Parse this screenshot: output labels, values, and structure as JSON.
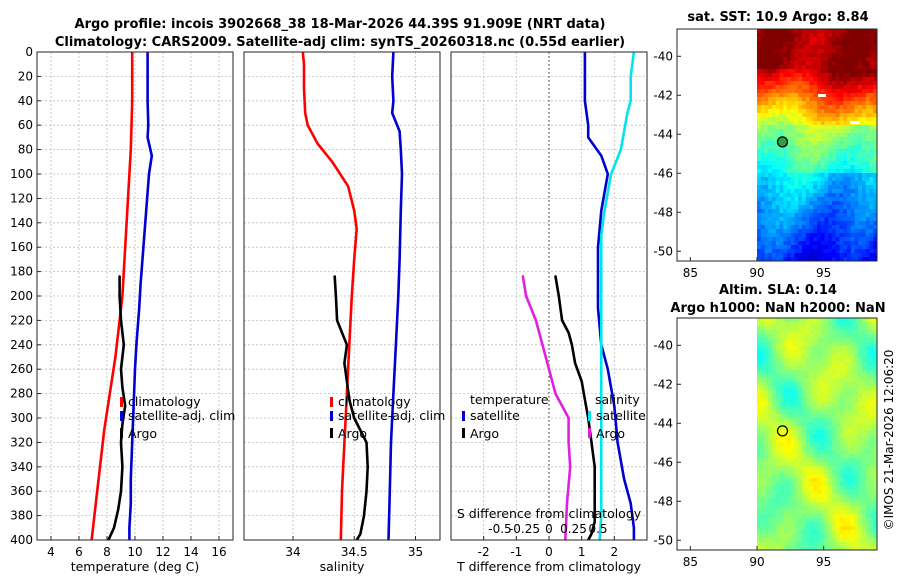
{
  "header": {
    "title_line1": "Argo profile: incois 3902668_38 18-Mar-2026 44.39S 91.909E (NRT data)",
    "title_line2": "Climatology: CARS2009. Satellite-adj clim: synTS_20260318.nc (0.55d earlier)"
  },
  "colors": {
    "climatology": "#ff0000",
    "satellite": "#0000d0",
    "argo": "#000000",
    "salinity_satellite": "#00e5ee",
    "salinity_argo": "#e020e0"
  },
  "chart_data": [
    {
      "type": "line",
      "id": "temperature",
      "xlabel": "temperature (deg C)",
      "ylabel": "",
      "xlim": [
        3,
        17
      ],
      "ylim": [
        400,
        0
      ],
      "xticks": [
        "4",
        "6",
        "8",
        "10",
        "12",
        "14",
        "16"
      ],
      "xtick_values": [
        4,
        6,
        8,
        10,
        12,
        14,
        16
      ],
      "yticks": [
        "0",
        "20",
        "40",
        "60",
        "80",
        "100",
        "120",
        "140",
        "160",
        "180",
        "200",
        "220",
        "240",
        "260",
        "280",
        "300",
        "320",
        "340",
        "360",
        "380",
        "400"
      ],
      "ytick_values": [
        0,
        20,
        40,
        60,
        80,
        100,
        120,
        140,
        160,
        180,
        200,
        220,
        240,
        260,
        280,
        300,
        320,
        340,
        360,
        380,
        400
      ],
      "grid": true,
      "legend": [
        "climatology",
        "satellite-adj. clim",
        "Argo"
      ],
      "series": [
        {
          "name": "climatology",
          "color": "#ff0000",
          "x": [
            9.8,
            9.8,
            9.7,
            9.6,
            9.5,
            9.4,
            9.3,
            9.2,
            9.1,
            8.9,
            8.6,
            8.2,
            7.8,
            7.5,
            7.2,
            6.9
          ],
          "y": [
            0,
            40,
            80,
            100,
            120,
            140,
            160,
            180,
            200,
            220,
            250,
            280,
            310,
            340,
            370,
            400
          ]
        },
        {
          "name": "satellite-adj. clim",
          "color": "#0000d0",
          "x": [
            10.9,
            10.9,
            10.95,
            10.9,
            11.2,
            11.0,
            10.8,
            10.6,
            10.4,
            10.3,
            10.1,
            10.0,
            9.9,
            9.8,
            9.7,
            9.7,
            9.6,
            9.6
          ],
          "y": [
            0,
            40,
            60,
            70,
            85,
            100,
            130,
            160,
            190,
            210,
            240,
            260,
            290,
            320,
            350,
            370,
            390,
            400
          ]
        },
        {
          "name": "Argo",
          "color": "#000000",
          "x": [
            8.9,
            8.9,
            9.0,
            9.2,
            9.0,
            9.1,
            9.3,
            9.1,
            9.0,
            9.1,
            9.0,
            8.8,
            8.5,
            8.1
          ],
          "y": [
            184,
            200,
            220,
            240,
            260,
            275,
            290,
            305,
            320,
            340,
            360,
            375,
            390,
            400
          ]
        }
      ]
    },
    {
      "type": "line",
      "id": "salinity",
      "xlabel": "salinity",
      "xlim": [
        33.6,
        35.2
      ],
      "ylim": [
        400,
        0
      ],
      "xticks": [
        "34",
        "34.5",
        "35"
      ],
      "xtick_values": [
        34,
        34.5,
        35
      ],
      "grid": true,
      "legend": [
        "climatology",
        "satellite-adj. clim",
        "Argo"
      ],
      "series": [
        {
          "name": "climatology",
          "color": "#ff0000",
          "x": [
            34.08,
            34.09,
            34.09,
            34.1,
            34.12,
            34.2,
            34.32,
            34.45,
            34.5,
            34.52,
            34.5,
            34.48,
            34.46,
            34.44,
            34.42,
            34.4,
            34.39
          ],
          "y": [
            0,
            10,
            30,
            50,
            60,
            75,
            90,
            110,
            130,
            145,
            170,
            200,
            240,
            280,
            320,
            360,
            400
          ]
        },
        {
          "name": "satellite-adj. clim",
          "color": "#0000d0",
          "x": [
            34.82,
            34.81,
            34.82,
            34.81,
            34.87,
            34.88,
            34.89,
            34.88,
            34.87,
            34.86,
            34.84,
            34.82,
            34.8,
            34.79,
            34.78
          ],
          "y": [
            0,
            20,
            40,
            50,
            65,
            80,
            100,
            130,
            170,
            200,
            240,
            280,
            320,
            360,
            400
          ]
        },
        {
          "name": "Argo",
          "color": "#000000",
          "x": [
            34.34,
            34.35,
            34.36,
            34.4,
            34.44,
            34.42,
            34.44,
            34.46,
            34.5,
            34.6,
            34.61,
            34.6,
            34.58,
            34.55,
            34.52
          ],
          "y": [
            184,
            200,
            220,
            230,
            240,
            255,
            270,
            285,
            300,
            320,
            340,
            360,
            380,
            395,
            400
          ]
        }
      ]
    },
    {
      "type": "line",
      "id": "difference",
      "xlabel": "T difference from climatology",
      "xlim": [
        -3,
        3
      ],
      "ylim": [
        400,
        0
      ],
      "xticks": [
        "-2",
        "-1",
        "0",
        "1",
        "2"
      ],
      "xtick_values": [
        -2,
        -1,
        0,
        1,
        2
      ],
      "top_label": "S difference from climatology",
      "top_ticks": [
        "-0.5",
        "-0.25",
        "0",
        "0.25",
        "0.5"
      ],
      "top_tick_values": [
        -0.5,
        -0.25,
        0,
        0.25,
        0.5
      ],
      "grid": true,
      "legend_headers": [
        "temperature",
        "salinity"
      ],
      "legend": [
        "satellite",
        "Argo",
        "satellite",
        "Argo"
      ],
      "series": [
        {
          "name": "temperature satellite",
          "color": "#0000d0",
          "x": [
            1.1,
            1.1,
            1.2,
            1.2,
            1.6,
            1.8,
            1.6,
            1.5,
            1.5,
            1.5,
            1.6,
            1.8,
            2.0,
            2.1,
            2.3,
            2.5,
            2.6,
            2.6
          ],
          "y": [
            0,
            40,
            60,
            70,
            85,
            100,
            130,
            160,
            190,
            210,
            240,
            260,
            290,
            320,
            350,
            370,
            390,
            400
          ]
        },
        {
          "name": "temperature Argo",
          "color": "#000000",
          "x": [
            0.2,
            0.3,
            0.4,
            0.6,
            0.7,
            0.8,
            1.0,
            1.1,
            1.2,
            1.3,
            1.4,
            1.4,
            1.4,
            1.4,
            1.3,
            1.2
          ],
          "y": [
            184,
            200,
            220,
            230,
            240,
            255,
            270,
            285,
            300,
            320,
            340,
            360,
            375,
            385,
            395,
            400
          ]
        },
        {
          "name": "salinity satellite",
          "color": "#00e5ee",
          "x": [
            2.6,
            2.5,
            2.5,
            2.4,
            2.3,
            2.2,
            1.9,
            1.7,
            1.6,
            1.6,
            1.6,
            1.6,
            1.6,
            1.6,
            1.55
          ],
          "y": [
            0,
            20,
            40,
            50,
            65,
            80,
            100,
            130,
            150,
            200,
            250,
            300,
            340,
            380,
            400
          ]
        },
        {
          "name": "salinity Argo",
          "color": "#e020e0",
          "x": [
            -0.8,
            -0.7,
            -0.4,
            -0.2,
            0.0,
            0.2,
            0.6,
            0.6,
            0.65,
            0.55,
            0.5
          ],
          "y": [
            184,
            200,
            220,
            240,
            260,
            280,
            300,
            320,
            340,
            370,
            400
          ]
        }
      ]
    },
    {
      "type": "heatmap",
      "id": "sst_map",
      "title": "sat. SST: 10.9 Argo: 8.84",
      "xticks": [
        "85",
        "90",
        "95"
      ],
      "xtick_values": [
        85,
        90,
        95
      ],
      "yticks": [
        "-40",
        "-42",
        "-44",
        "-46",
        "-48",
        "-50"
      ],
      "ytick_values": [
        -40,
        -42,
        -44,
        -46,
        -48,
        -50
      ],
      "xlim": [
        84,
        99
      ],
      "ylim": [
        -50.5,
        -38.6
      ],
      "data_lon_range": [
        90,
        99
      ],
      "colormap": "jet",
      "marker": {
        "lon": 91.909,
        "lat": -44.39
      }
    },
    {
      "type": "heatmap",
      "id": "sla_map",
      "title_line1": "Altim. SLA: 0.14",
      "title_line2": "Argo h1000: NaN h2000: NaN",
      "xticks": [
        "85",
        "90",
        "95"
      ],
      "xtick_values": [
        85,
        90,
        95
      ],
      "yticks": [
        "-40",
        "-42",
        "-44",
        "-46",
        "-48",
        "-50"
      ],
      "ytick_values": [
        -40,
        -42,
        -44,
        -46,
        -48,
        -50
      ],
      "xlim": [
        84,
        99
      ],
      "ylim": [
        -50.5,
        -38.6
      ],
      "data_lon_range": [
        90,
        99
      ],
      "colormap": "jet",
      "marker": {
        "lon": 91.909,
        "lat": -44.39
      }
    }
  ],
  "footer": {
    "credit": "©IMOS 21-Mar-2026 12:06:20"
  }
}
